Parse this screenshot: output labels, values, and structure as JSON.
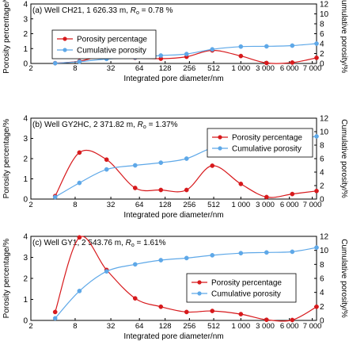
{
  "chart_data": [
    {
      "type": "line",
      "panel_label": "(a) Well CH21, 1 626.33 m, ",
      "ro_symbol": "R",
      "ro_sub": "o",
      "ro_value": " = 0.78 %",
      "xlabel": "Integrated pore diameter/nm",
      "ylabel_left": "Porosity percentage/%",
      "ylabel_right": "Cumulative porosity/%",
      "x_ticks": [
        "2",
        "8",
        "32",
        "64",
        "128",
        "256",
        "512",
        "1 000",
        "3 000",
        "6 000",
        "7 000"
      ],
      "y_left_range": [
        0,
        4
      ],
      "y_left_ticks": [
        "0",
        "1",
        "2",
        "3",
        "4"
      ],
      "y_right_range": [
        0,
        12
      ],
      "y_right_ticks": [
        "0",
        "2",
        "4",
        "6",
        "8",
        "10",
        "12"
      ],
      "legend_position": "upper-middle",
      "series": [
        {
          "name": "Porosity percentage",
          "axis": "left",
          "color": "#d7191c",
          "marker": "circle",
          "x": [
            1,
            4,
            16,
            50,
            100,
            200,
            400,
            800,
            2000,
            4000,
            6500
          ],
          "y": [
            0.02,
            0.15,
            0.55,
            0.38,
            0.32,
            0.45,
            0.88,
            0.5,
            0.03,
            0.06,
            0.38
          ]
        },
        {
          "name": "Cumulative porosity",
          "axis": "right",
          "color": "#5ea8e8",
          "marker": "circle",
          "x": [
            1,
            4,
            16,
            50,
            100,
            200,
            400,
            800,
            2000,
            4000,
            6500
          ],
          "y": [
            0.05,
            0.35,
            0.9,
            1.2,
            1.6,
            1.9,
            2.85,
            3.4,
            3.45,
            3.6,
            4.0
          ]
        }
      ]
    },
    {
      "type": "line",
      "panel_label": "(b) Well GY2HC, 2 371.82 m, ",
      "ro_symbol": "R",
      "ro_sub": "o",
      "ro_value": " = 1.37%",
      "xlabel": "Integrated pore diameter/nm",
      "ylabel_left": "Porosity percentage/%",
      "ylabel_right": "Cumulative porosity/%",
      "x_ticks": [
        "2",
        "8",
        "32",
        "64",
        "128",
        "256",
        "512",
        "1 000",
        "3 000",
        "6 000",
        "7 000"
      ],
      "y_left_range": [
        0,
        4
      ],
      "y_left_ticks": [
        "0",
        "1",
        "2",
        "3",
        "4"
      ],
      "y_right_range": [
        0,
        12
      ],
      "y_right_ticks": [
        "0",
        "2",
        "4",
        "6",
        "8",
        "10",
        "12"
      ],
      "legend_position": "upper-right",
      "series": [
        {
          "name": "Porosity percentage",
          "axis": "left",
          "color": "#d7191c",
          "marker": "circle",
          "x": [
            1,
            4,
            16,
            50,
            100,
            200,
            400,
            800,
            2000,
            4000,
            6500
          ],
          "y": [
            0.15,
            2.3,
            1.95,
            0.55,
            0.45,
            0.45,
            1.65,
            0.75,
            0.1,
            0.25,
            0.4
          ]
        },
        {
          "name": "Cumulative porosity",
          "axis": "right",
          "color": "#5ea8e8",
          "marker": "circle",
          "x": [
            1,
            4,
            16,
            50,
            100,
            200,
            400,
            800,
            2000,
            4000,
            6500
          ],
          "y": [
            0.3,
            2.4,
            4.4,
            5.0,
            5.4,
            6.0,
            7.6,
            8.3,
            8.5,
            8.8,
            9.3
          ]
        }
      ]
    },
    {
      "type": "line",
      "panel_label": "(c) Well GY1, 2 543.76 m, ",
      "ro_symbol": "R",
      "ro_sub": "o",
      "ro_value": " = 1.61%",
      "xlabel": "Integrated pore diameter/nm",
      "ylabel_left": "Porosity percentage/%",
      "ylabel_right": "Cumulative porosity/%",
      "x_ticks": [
        "2",
        "8",
        "32",
        "64",
        "128",
        "256",
        "512",
        "1 000",
        "3 000",
        "6 000",
        "7 000"
      ],
      "y_left_range": [
        0,
        4
      ],
      "y_left_ticks": [
        "0",
        "1",
        "2",
        "3",
        "4"
      ],
      "y_right_range": [
        0,
        12
      ],
      "y_right_ticks": [
        "0",
        "2",
        "4",
        "6",
        "8",
        "10",
        "12"
      ],
      "legend_position": "center-right",
      "series": [
        {
          "name": "Porosity percentage",
          "axis": "left",
          "color": "#d7191c",
          "marker": "circle",
          "x": [
            1,
            4,
            16,
            50,
            100,
            200,
            400,
            800,
            2000,
            4000,
            6500
          ],
          "y": [
            0.4,
            3.95,
            2.4,
            1.05,
            0.65,
            0.4,
            0.45,
            0.3,
            0.03,
            0.02,
            0.65
          ]
        },
        {
          "name": "Cumulative porosity",
          "axis": "right",
          "color": "#5ea8e8",
          "marker": "circle",
          "x": [
            1,
            4,
            16,
            50,
            100,
            200,
            400,
            800,
            2000,
            4000,
            6500
          ],
          "y": [
            0.3,
            4.2,
            7.0,
            8.0,
            8.6,
            8.9,
            9.3,
            9.6,
            9.7,
            9.8,
            10.4
          ]
        }
      ]
    }
  ]
}
